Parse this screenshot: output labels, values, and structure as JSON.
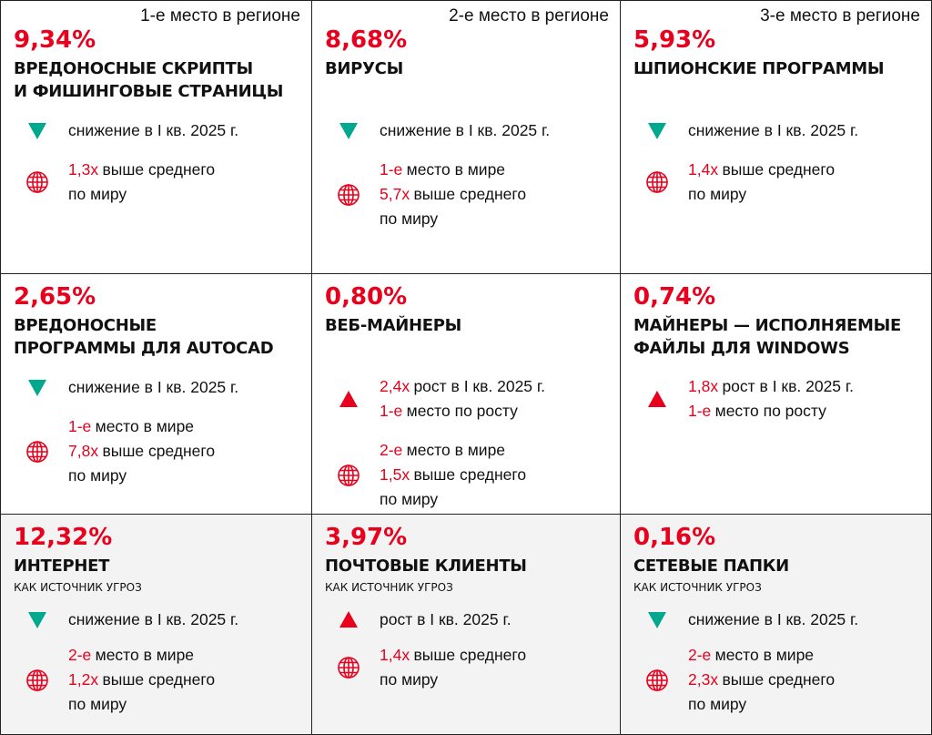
{
  "cells": [
    {
      "rank": "1-е место в регионе",
      "percent": "9,34%",
      "title": [
        "ВРЕДОНОСНЫЕ СКРИПТЫ",
        "И ФИШИНГОВЫЕ СТРАНИЦЫ"
      ],
      "trend": "down",
      "trend_lines": [
        {
          "rest": "снижение в I кв. 2025 г."
        }
      ],
      "world_lines": [
        {
          "accent": "1,3x",
          "rest": "выше среднего"
        },
        {
          "rest": "по миру"
        }
      ]
    },
    {
      "rank": "2-е место в регионе",
      "percent": "8,68%",
      "title": [
        "ВИРУСЫ"
      ],
      "trend": "down",
      "trend_lines": [
        {
          "rest": "снижение в I кв. 2025 г."
        }
      ],
      "world_lines": [
        {
          "accent": "1-е",
          "rest": "место в мире"
        },
        {
          "accent": "5,7x",
          "rest": "выше среднего"
        },
        {
          "rest": "по миру"
        }
      ]
    },
    {
      "rank": "3-е место в регионе",
      "percent": "5,93%",
      "title": [
        "ШПИОНСКИЕ ПРОГРАММЫ"
      ],
      "trend": "down",
      "trend_lines": [
        {
          "rest": "снижение в I кв. 2025 г."
        }
      ],
      "world_lines": [
        {
          "accent": "1,4x",
          "rest": "выше среднего"
        },
        {
          "rest": "по миру"
        }
      ]
    },
    {
      "percent": "2,65%",
      "title": [
        "ВРЕДОНОСНЫЕ",
        "ПРОГРАММЫ ДЛЯ AUTOCAD"
      ],
      "trend": "down",
      "trend_lines": [
        {
          "rest": "снижение в I кв. 2025 г."
        }
      ],
      "world_lines": [
        {
          "accent": "1-е",
          "rest": "место в мире"
        },
        {
          "accent": "7,8x",
          "rest": "выше среднего"
        },
        {
          "rest": "по миру"
        }
      ]
    },
    {
      "percent": "0,80%",
      "title": [
        "ВЕБ-МАЙНЕРЫ"
      ],
      "trend": "up",
      "trend_lines": [
        {
          "accent": "2,4x",
          "rest": "рост в I кв. 2025 г."
        },
        {
          "accent": "1-е",
          "rest": "место по росту"
        }
      ],
      "world_lines": [
        {
          "accent": "2-е",
          "rest": "место в мире"
        },
        {
          "accent": "1,5x",
          "rest": "выше среднего"
        },
        {
          "rest": "по миру"
        }
      ]
    },
    {
      "percent": "0,74%",
      "title": [
        "МАЙНЕРЫ — ИСПОЛНЯЕМЫЕ",
        "ФАЙЛЫ ДЛЯ WINDOWS"
      ],
      "trend": "up",
      "trend_lines": [
        {
          "accent": "1,8x",
          "rest": "рост в I кв. 2025 г."
        },
        {
          "accent": "1-е",
          "rest": "место по росту"
        }
      ]
    },
    {
      "percent": "12,32%",
      "title": [
        "ИНТЕРНЕТ"
      ],
      "subtitle": "КАК ИСТОЧНИК УГРОЗ",
      "trend": "down",
      "trend_lines": [
        {
          "rest": "снижение в I кв. 2025 г."
        }
      ],
      "world_lines": [
        {
          "accent": "2-е",
          "rest": "место в мире"
        },
        {
          "accent": "1,2x",
          "rest": "выше среднего"
        },
        {
          "rest": "по миру"
        }
      ]
    },
    {
      "percent": "3,97%",
      "title": [
        "ПОЧТОВЫЕ КЛИЕНТЫ"
      ],
      "subtitle": "КАК ИСТОЧНИК УГРОЗ",
      "trend": "up",
      "trend_lines": [
        {
          "rest": "рост в I кв. 2025 г."
        }
      ],
      "world_lines": [
        {
          "accent": "1,4x",
          "rest": "выше среднего"
        },
        {
          "rest": "по миру"
        }
      ]
    },
    {
      "percent": "0,16%",
      "title": [
        "СЕТЕВЫЕ ПАПКИ"
      ],
      "subtitle": "КАК ИСТОЧНИК УГРОЗ",
      "trend": "down",
      "trend_lines": [
        {
          "rest": "снижение в I кв. 2025 г."
        }
      ],
      "world_lines": [
        {
          "accent": "2-е",
          "rest": "место в мире"
        },
        {
          "accent": "2,3x",
          "rest": "выше среднего"
        },
        {
          "rest": "по миру"
        }
      ]
    }
  ]
}
